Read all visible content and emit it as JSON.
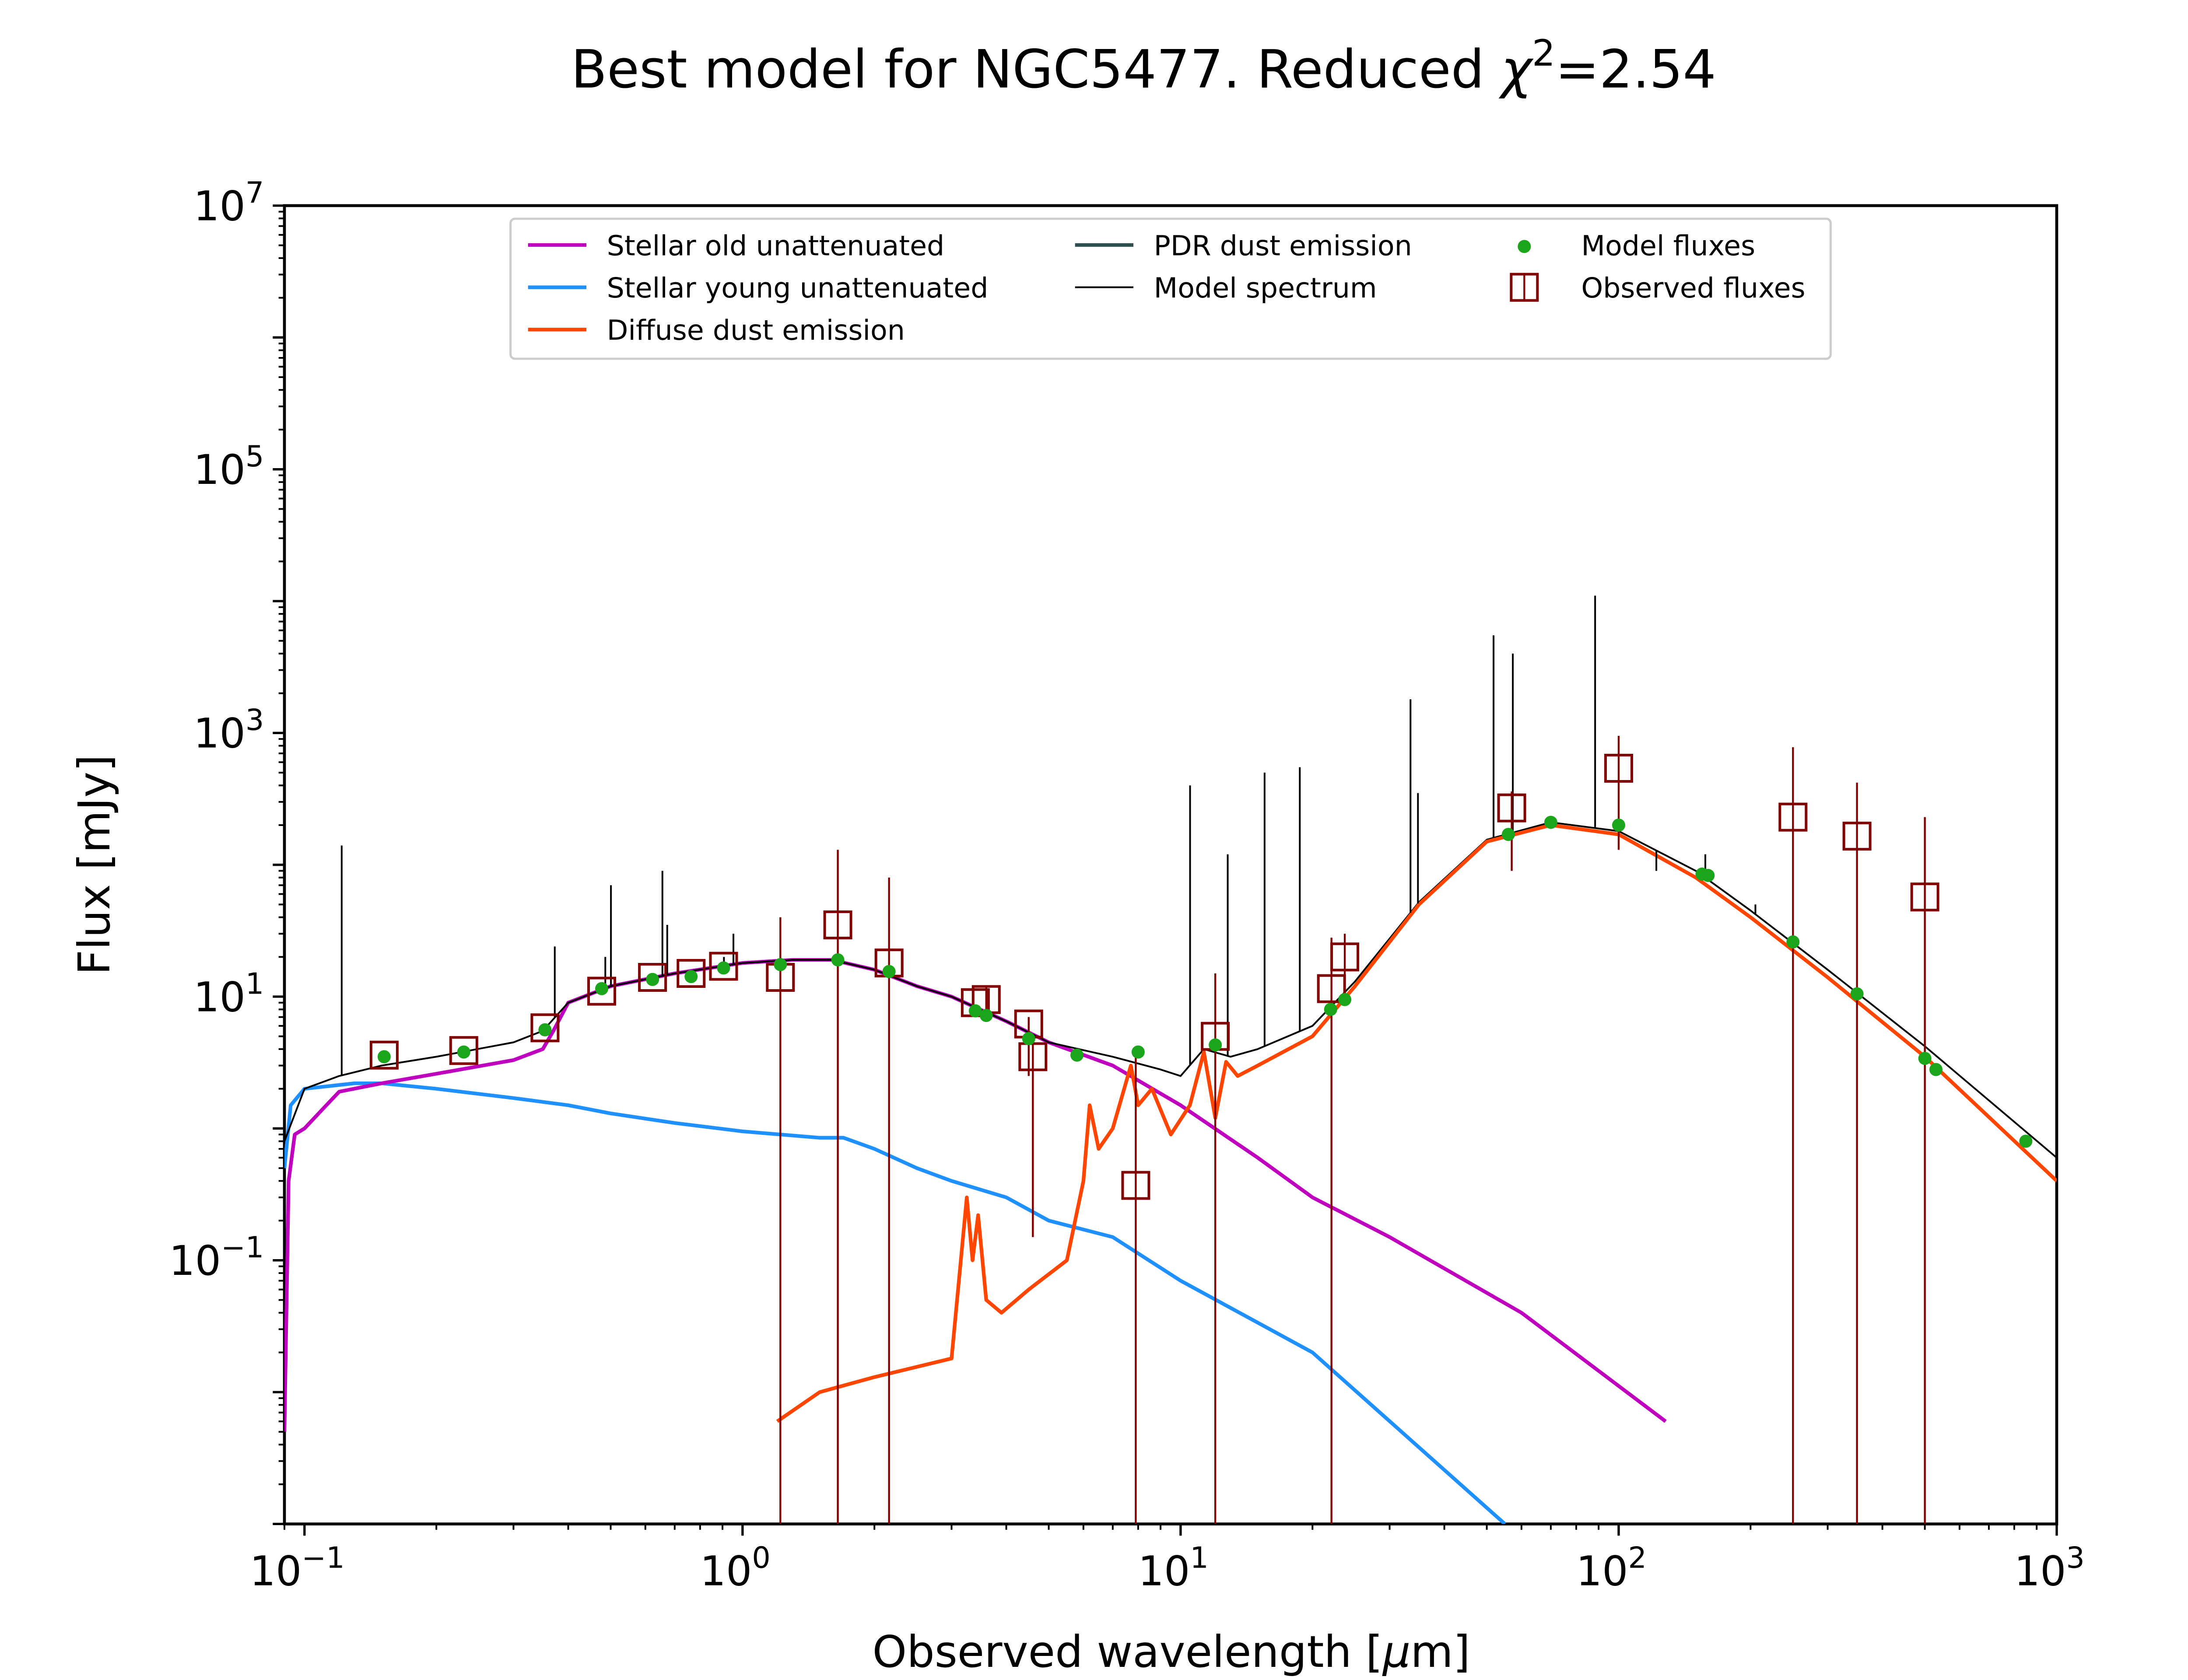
{
  "chart_data": {
    "type": "line",
    "title": "Best model for NGC5477. Reduced χ²=2.54",
    "title_main": "Best model for NGC5477. Reduced ",
    "title_chi": "χ",
    "title_sup": "2",
    "title_value": "=2.54",
    "xlabel": "Observed wavelength [μm]",
    "xlabel_main": "Observed wavelength [",
    "xlabel_mu": "μ",
    "xlabel_end": "m]",
    "ylabel": "Flux [mJy]",
    "xscale": "log",
    "yscale": "log",
    "xlim": [
      0.09,
      1000
    ],
    "ylim": [
      0.001,
      10000000
    ],
    "grid": false,
    "legend_position": "top-center",
    "x_ticks": [
      {
        "base": "10",
        "exp": "−1",
        "value": 0.1
      },
      {
        "base": "10",
        "exp": "0",
        "value": 1
      },
      {
        "base": "10",
        "exp": "1",
        "value": 10
      },
      {
        "base": "10",
        "exp": "2",
        "value": 100
      },
      {
        "base": "10",
        "exp": "3",
        "value": 1000
      }
    ],
    "y_ticks": [
      {
        "base": "10",
        "exp": "−1",
        "value": 0.1
      },
      {
        "base": "10",
        "exp": "1",
        "value": 10
      },
      {
        "base": "10",
        "exp": "3",
        "value": 1000
      },
      {
        "base": "10",
        "exp": "5",
        "value": 100000
      },
      {
        "base": "10",
        "exp": "7",
        "value": 10000000
      }
    ],
    "colors": {
      "stellar_old": "#bf00bf",
      "stellar_young": "#1e90ff",
      "diffuse_dust": "#ff4500",
      "pdr_dust": "#2f4f4f",
      "model_spectrum": "#000000",
      "model_fluxes": "#1aa51a",
      "observed": "#800000"
    },
    "legend": [
      {
        "key": "stellar_old",
        "label": "Stellar old unattenuated",
        "marker": "line"
      },
      {
        "key": "pdr_dust",
        "label": "PDR dust emission",
        "marker": "line"
      },
      {
        "key": "model_fluxes",
        "label": "Model fluxes",
        "marker": "dot"
      },
      {
        "key": "stellar_young",
        "label": "Stellar young unattenuated",
        "marker": "line"
      },
      {
        "key": "model_spectrum",
        "label": "Model spectrum",
        "marker": "thin-line"
      },
      {
        "key": "observed",
        "label": "Observed fluxes",
        "marker": "square"
      },
      {
        "key": "diffuse_dust",
        "label": "Diffuse dust emission",
        "marker": "line"
      }
    ],
    "series": [
      {
        "key": "stellar_old",
        "points": [
          [
            0.09,
            0.005
          ],
          [
            0.092,
            0.4
          ],
          [
            0.095,
            0.9
          ],
          [
            0.1,
            1.0
          ],
          [
            0.11,
            1.4
          ],
          [
            0.12,
            1.9
          ],
          [
            0.15,
            2.2
          ],
          [
            0.2,
            2.6
          ],
          [
            0.3,
            3.3
          ],
          [
            0.35,
            4.0
          ],
          [
            0.37,
            5.5
          ],
          [
            0.4,
            9.0
          ],
          [
            0.5,
            12
          ],
          [
            0.7,
            15
          ],
          [
            1.0,
            18
          ],
          [
            1.3,
            19
          ],
          [
            1.6,
            19
          ],
          [
            2.0,
            16
          ],
          [
            2.5,
            12
          ],
          [
            3.0,
            10
          ],
          [
            4.0,
            6.5
          ],
          [
            5.0,
            4.5
          ],
          [
            7.0,
            3.0
          ],
          [
            10.0,
            1.5
          ],
          [
            15.0,
            0.6
          ],
          [
            20.0,
            0.3
          ],
          [
            30.0,
            0.15
          ],
          [
            60.0,
            0.04
          ],
          [
            128,
            0.006
          ]
        ]
      },
      {
        "key": "stellar_young",
        "points": [
          [
            0.09,
            0.5
          ],
          [
            0.093,
            1.5
          ],
          [
            0.1,
            2.0
          ],
          [
            0.13,
            2.2
          ],
          [
            0.15,
            2.2
          ],
          [
            0.2,
            2.0
          ],
          [
            0.3,
            1.7
          ],
          [
            0.4,
            1.5
          ],
          [
            0.5,
            1.3
          ],
          [
            0.7,
            1.1
          ],
          [
            1.0,
            0.95
          ],
          [
            1.5,
            0.85
          ],
          [
            1.7,
            0.85
          ],
          [
            2.0,
            0.7
          ],
          [
            2.5,
            0.5
          ],
          [
            3.0,
            0.4
          ],
          [
            4.0,
            0.3
          ],
          [
            5.0,
            0.2
          ],
          [
            7.0,
            0.15
          ],
          [
            10.0,
            0.07
          ],
          [
            20.0,
            0.02
          ],
          [
            55.0,
            0.001
          ]
        ]
      },
      {
        "key": "diffuse_dust",
        "points": [
          [
            1.2,
            0.006
          ],
          [
            1.5,
            0.01
          ],
          [
            2.0,
            0.013
          ],
          [
            3.0,
            0.018
          ],
          [
            3.25,
            0.3
          ],
          [
            3.35,
            0.1
          ],
          [
            3.45,
            0.22
          ],
          [
            3.6,
            0.05
          ],
          [
            3.9,
            0.04
          ],
          [
            4.5,
            0.06
          ],
          [
            5.5,
            0.1
          ],
          [
            6.0,
            0.4
          ],
          [
            6.2,
            1.5
          ],
          [
            6.5,
            0.7
          ],
          [
            7.0,
            1.0
          ],
          [
            7.7,
            3.0
          ],
          [
            8.0,
            1.5
          ],
          [
            8.6,
            2.0
          ],
          [
            9.5,
            0.9
          ],
          [
            10.5,
            1.5
          ],
          [
            11.3,
            3.8
          ],
          [
            12.0,
            1.2
          ],
          [
            12.7,
            3.2
          ],
          [
            13.5,
            2.5
          ],
          [
            15.0,
            3.0
          ],
          [
            20.0,
            5.0
          ],
          [
            25.0,
            12
          ],
          [
            35.0,
            50
          ],
          [
            50.0,
            150
          ],
          [
            70.0,
            200
          ],
          [
            100.0,
            170
          ],
          [
            150.0,
            80
          ],
          [
            200.0,
            40
          ],
          [
            300.0,
            14
          ],
          [
            500.0,
            3.5
          ],
          [
            1000.0,
            0.4
          ]
        ]
      },
      {
        "key": "model_spectrum",
        "points": [
          [
            0.09,
            0.8
          ],
          [
            0.1,
            2.0
          ],
          [
            0.12,
            2.5
          ],
          [
            0.15,
            3.0
          ],
          [
            0.2,
            3.5
          ],
          [
            0.3,
            4.5
          ],
          [
            0.35,
            5.5
          ],
          [
            0.4,
            9.0
          ],
          [
            0.5,
            12
          ],
          [
            0.7,
            15
          ],
          [
            1.0,
            18
          ],
          [
            1.3,
            19
          ],
          [
            1.6,
            19
          ],
          [
            2.0,
            16
          ],
          [
            2.5,
            12
          ],
          [
            3.0,
            10
          ],
          [
            4.0,
            6.5
          ],
          [
            5.0,
            4.5
          ],
          [
            7.0,
            3.5
          ],
          [
            9.0,
            2.8
          ],
          [
            10.0,
            2.5
          ],
          [
            11.3,
            4.0
          ],
          [
            13.0,
            3.5
          ],
          [
            15.0,
            4.0
          ],
          [
            20.0,
            6.0
          ],
          [
            25.0,
            13
          ],
          [
            35.0,
            52
          ],
          [
            50.0,
            155
          ],
          [
            70.0,
            210
          ],
          [
            100.0,
            180
          ],
          [
            150.0,
            90
          ],
          [
            200.0,
            45
          ],
          [
            300.0,
            16
          ],
          [
            500.0,
            4.2
          ],
          [
            1000.0,
            0.6
          ]
        ]
      }
    ],
    "emission_lines": [
      [
        0.1216,
        140
      ],
      [
        0.3727,
        24
      ],
      [
        0.4861,
        20
      ],
      [
        0.5007,
        70
      ],
      [
        0.6563,
        90
      ],
      [
        0.6731,
        35
      ],
      [
        0.9069,
        20
      ],
      [
        0.9532,
        30
      ],
      [
        6.99,
        3.5
      ],
      [
        10.51,
        400
      ],
      [
        12.81,
        120
      ],
      [
        15.55,
        500
      ],
      [
        18.71,
        550
      ],
      [
        33.48,
        1800
      ],
      [
        34.82,
        350
      ],
      [
        51.81,
        5500
      ],
      [
        57.33,
        4000
      ],
      [
        88.36,
        11000
      ],
      [
        121.9,
        90
      ],
      [
        157.7,
        120
      ],
      [
        205.2,
        50
      ]
    ],
    "model_fluxes": [
      [
        0.152,
        3.5
      ],
      [
        0.231,
        3.8
      ],
      [
        0.354,
        5.6
      ],
      [
        0.477,
        11.5
      ],
      [
        0.623,
        13.5
      ],
      [
        0.763,
        14.2
      ],
      [
        0.905,
        16.5
      ],
      [
        1.22,
        17.5
      ],
      [
        1.65,
        19
      ],
      [
        2.16,
        15.5
      ],
      [
        3.4,
        7.8
      ],
      [
        3.6,
        7.2
      ],
      [
        4.5,
        4.8
      ],
      [
        5.8,
        3.6
      ],
      [
        8.0,
        3.8
      ],
      [
        12.0,
        4.3
      ],
      [
        22.0,
        8.0
      ],
      [
        23.7,
        9.5
      ],
      [
        56.0,
        170
      ],
      [
        70.0,
        210
      ],
      [
        100.0,
        200
      ],
      [
        155.0,
        85
      ],
      [
        160.0,
        83
      ],
      [
        250.0,
        26
      ],
      [
        350.0,
        10.5
      ],
      [
        500.0,
        3.4
      ],
      [
        530.0,
        2.8
      ],
      [
        850.0,
        0.8
      ]
    ],
    "observed_fluxes": [
      {
        "x": 0.152,
        "y": 3.6
      },
      {
        "x": 0.231,
        "y": 3.9
      },
      {
        "x": 0.354,
        "y": 5.8
      },
      {
        "x": 0.477,
        "y": 11
      },
      {
        "x": 0.623,
        "y": 14
      },
      {
        "x": 0.763,
        "y": 15
      },
      {
        "x": 0.905,
        "y": 17
      },
      {
        "x": 1.22,
        "y": 14,
        "err": [
          0.001,
          40
        ]
      },
      {
        "x": 1.65,
        "y": 35,
        "err": [
          0.001,
          130
        ]
      },
      {
        "x": 2.16,
        "y": 18,
        "err": [
          0.001,
          80
        ]
      },
      {
        "x": 3.4,
        "y": 9.0
      },
      {
        "x": 3.6,
        "y": 9.5,
        "err": [
          7,
          12
        ]
      },
      {
        "x": 4.5,
        "y": 6.2,
        "err": [
          2.5,
          7
        ]
      },
      {
        "x": 4.6,
        "y": 3.5,
        "err": [
          0.15,
          4.5
        ]
      },
      {
        "x": 7.9,
        "y": 0.37,
        "err": [
          0.001,
          3.8
        ]
      },
      {
        "x": 12.0,
        "y": 5.0,
        "err": [
          0.001,
          15
        ]
      },
      {
        "x": 22.1,
        "y": 11.5,
        "err": [
          0.001,
          28
        ]
      },
      {
        "x": 23.7,
        "y": 20,
        "err": [
          11,
          30
        ]
      },
      {
        "x": 57.0,
        "y": 270,
        "err": [
          90,
          360
        ]
      },
      {
        "x": 100.0,
        "y": 540,
        "err": [
          130,
          950
        ]
      },
      {
        "x": 250.0,
        "y": 230,
        "err": [
          0.001,
          780
        ]
      },
      {
        "x": 350.0,
        "y": 165,
        "err": [
          0.001,
          420
        ]
      },
      {
        "x": 500.0,
        "y": 57,
        "err": [
          0.001,
          230
        ]
      }
    ]
  }
}
